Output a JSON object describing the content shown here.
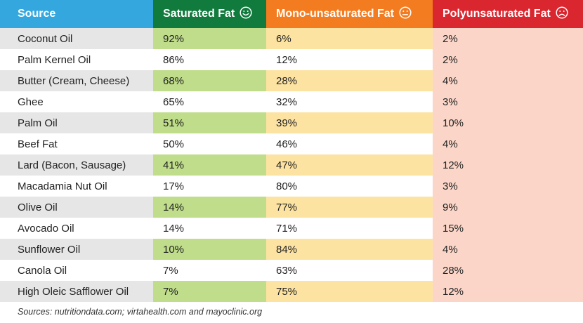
{
  "headers": {
    "source": "Source",
    "saturated": "Saturated Fat",
    "mono": "Mono-unsaturated Fat",
    "poly": "Polyunsaturated Fat",
    "saturated_icon": "smiling-face-icon",
    "mono_icon": "neutral-face-icon",
    "poly_icon": "frowning-face-icon"
  },
  "rows": [
    {
      "source": "Coconut Oil",
      "saturated": "92%",
      "mono": "6%",
      "poly": "2%"
    },
    {
      "source": "Palm Kernel Oil",
      "saturated": "86%",
      "mono": "12%",
      "poly": "2%"
    },
    {
      "source": "Butter (Cream, Cheese)",
      "saturated": "68%",
      "mono": "28%",
      "poly": "4%"
    },
    {
      "source": "Ghee",
      "saturated": "65%",
      "mono": "32%",
      "poly": "3%"
    },
    {
      "source": "Palm Oil",
      "saturated": "51%",
      "mono": "39%",
      "poly": "10%"
    },
    {
      "source": "Beef Fat",
      "saturated": "50%",
      "mono": "46%",
      "poly": "4%"
    },
    {
      "source": "Lard (Bacon, Sausage)",
      "saturated": "41%",
      "mono": "47%",
      "poly": "12%"
    },
    {
      "source": "Macadamia Nut Oil",
      "saturated": "17%",
      "mono": "80%",
      "poly": "3%"
    },
    {
      "source": "Olive Oil",
      "saturated": "14%",
      "mono": "77%",
      "poly": "9%"
    },
    {
      "source": "Avocado Oil",
      "saturated": "14%",
      "mono": "71%",
      "poly": "15%"
    },
    {
      "source": "Sunflower Oil",
      "saturated": "10%",
      "mono": "84%",
      "poly": "4%"
    },
    {
      "source": "Canola Oil",
      "saturated": "7%",
      "mono": "63%",
      "poly": "28%"
    },
    {
      "source": "High Oleic Safflower Oil",
      "saturated": "7%",
      "mono": "75%",
      "poly": "12%"
    }
  ],
  "footer": "Sources: nutritiondata.com; virtahealth.com and mayoclinic.org",
  "colors": {
    "source_header": "#34a8de",
    "saturated_header": "#117a3d",
    "mono_header": "#f47c20",
    "poly_header": "#d9262f"
  }
}
